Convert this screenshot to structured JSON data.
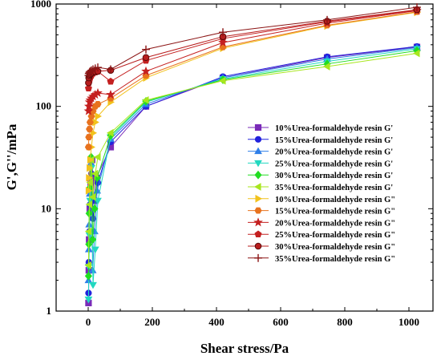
{
  "chart_data": {
    "type": "line",
    "xlabel": "Shear stress/Pa",
    "ylabel": "G',G''/mPa",
    "xlim": [
      -100,
      1075
    ],
    "ylim": [
      1,
      1000
    ],
    "yscale": "log",
    "xticks": [
      0,
      200,
      400,
      600,
      800,
      1000
    ],
    "xtick_labels": [
      "0",
      "200",
      "400",
      "600",
      "800",
      "1000"
    ],
    "yticks": [
      1,
      10,
      100,
      1000
    ],
    "ytick_labels": [
      "1",
      "10",
      "100",
      "1000"
    ],
    "legend_position": "right-center",
    "series": [
      {
        "name": "10%Urea-formaldehyde resin G'",
        "color": "#7a2bb8",
        "marker": "square",
        "points": [
          [
            1,
            1.2
          ],
          [
            2,
            2.5
          ],
          [
            3,
            5
          ],
          [
            5,
            10
          ],
          [
            8,
            18
          ],
          [
            12,
            30
          ],
          [
            18,
            12
          ],
          [
            25,
            20
          ],
          [
            70,
            40
          ],
          [
            180,
            100
          ],
          [
            420,
            190
          ],
          [
            745,
            300
          ],
          [
            1025,
            380
          ]
        ]
      },
      {
        "name": "15%Urea-formaldehyde resin G'",
        "color": "#2222dd",
        "marker": "circle",
        "points": [
          [
            1,
            1.5
          ],
          [
            2,
            3
          ],
          [
            4,
            6
          ],
          [
            6,
            11
          ],
          [
            10,
            22
          ],
          [
            15,
            8
          ],
          [
            22,
            12
          ],
          [
            30,
            18
          ],
          [
            70,
            45
          ],
          [
            180,
            100
          ],
          [
            420,
            195
          ],
          [
            745,
            305
          ],
          [
            1025,
            385
          ]
        ]
      },
      {
        "name": "20%Urea-formaldehyde resin G'",
        "color": "#2f7fe8",
        "marker": "triangle-up",
        "points": [
          [
            1,
            2
          ],
          [
            2,
            4
          ],
          [
            3,
            7
          ],
          [
            5,
            14
          ],
          [
            9,
            28
          ],
          [
            14,
            2.5
          ],
          [
            20,
            6
          ],
          [
            28,
            15
          ],
          [
            70,
            48
          ],
          [
            180,
            105
          ],
          [
            420,
            190
          ],
          [
            745,
            290
          ],
          [
            1025,
            375
          ]
        ]
      },
      {
        "name": "25%Urea-formaldehyde resin G'",
        "color": "#22d8c0",
        "marker": "triangle-down",
        "points": [
          [
            1,
            1.3
          ],
          [
            2,
            2.7
          ],
          [
            4,
            5.5
          ],
          [
            6,
            12
          ],
          [
            10,
            25
          ],
          [
            15,
            1.8
          ],
          [
            22,
            4
          ],
          [
            30,
            12
          ],
          [
            70,
            50
          ],
          [
            180,
            110
          ],
          [
            420,
            185
          ],
          [
            745,
            275
          ],
          [
            1025,
            365
          ]
        ]
      },
      {
        "name": "30%Urea-formaldehyde resin G'",
        "color": "#22dd22",
        "marker": "diamond",
        "points": [
          [
            1,
            2.2
          ],
          [
            2,
            4.5
          ],
          [
            3,
            9
          ],
          [
            5,
            16
          ],
          [
            9,
            32
          ],
          [
            14,
            5
          ],
          [
            20,
            10
          ],
          [
            28,
            20
          ],
          [
            70,
            52
          ],
          [
            180,
            112
          ],
          [
            420,
            182
          ],
          [
            745,
            260
          ],
          [
            1025,
            350
          ]
        ]
      },
      {
        "name": "35%Urea-formaldehyde resin G'",
        "color": "#a8e61e",
        "marker": "triangle-left",
        "points": [
          [
            1,
            2.8
          ],
          [
            2,
            6
          ],
          [
            4,
            11
          ],
          [
            6,
            18
          ],
          [
            10,
            30
          ],
          [
            15,
            13
          ],
          [
            22,
            22
          ],
          [
            30,
            32
          ],
          [
            70,
            55
          ],
          [
            180,
            115
          ],
          [
            420,
            178
          ],
          [
            745,
            245
          ],
          [
            1025,
            330
          ]
        ]
      },
      {
        "name": "10%Urea-formaldehyde resin G\"",
        "color": "#f2c21b",
        "marker": "triangle-right",
        "points": [
          [
            1,
            15
          ],
          [
            2,
            20
          ],
          [
            4,
            25
          ],
          [
            6,
            30
          ],
          [
            10,
            40
          ],
          [
            15,
            55
          ],
          [
            22,
            70
          ],
          [
            30,
            80
          ],
          [
            70,
            110
          ],
          [
            180,
            190
          ],
          [
            420,
            370
          ],
          [
            745,
            610
          ],
          [
            1025,
            830
          ]
        ]
      },
      {
        "name": "15%Urea-formaldehyde resin G\"",
        "color": "#e8721e",
        "marker": "hexagon",
        "points": [
          [
            1,
            40
          ],
          [
            2,
            50
          ],
          [
            4,
            60
          ],
          [
            6,
            70
          ],
          [
            10,
            80
          ],
          [
            15,
            90
          ],
          [
            22,
            100
          ],
          [
            30,
            105
          ],
          [
            70,
            120
          ],
          [
            180,
            200
          ],
          [
            420,
            380
          ],
          [
            745,
            620
          ],
          [
            1025,
            840
          ]
        ]
      },
      {
        "name": "20%Urea-formaldehyde resin G\"",
        "color": "#c42020",
        "marker": "star",
        "points": [
          [
            1,
            90
          ],
          [
            2,
            100
          ],
          [
            4,
            110
          ],
          [
            6,
            115
          ],
          [
            10,
            120
          ],
          [
            15,
            125
          ],
          [
            22,
            130
          ],
          [
            30,
            135
          ],
          [
            70,
            130
          ],
          [
            180,
            220
          ],
          [
            420,
            420
          ],
          [
            745,
            650
          ],
          [
            1025,
            860
          ]
        ]
      },
      {
        "name": "25%Urea-formaldehyde resin G\"",
        "color": "#c42020",
        "marker": "pentagon",
        "points": [
          [
            1,
            150
          ],
          [
            2,
            170
          ],
          [
            4,
            180
          ],
          [
            6,
            190
          ],
          [
            10,
            200
          ],
          [
            15,
            210
          ],
          [
            22,
            215
          ],
          [
            30,
            220
          ],
          [
            70,
            175
          ],
          [
            180,
            280
          ],
          [
            420,
            460
          ],
          [
            745,
            670
          ],
          [
            1025,
            870
          ]
        ]
      },
      {
        "name": "30%Urea-formaldehyde resin G\"",
        "color": "#b81e1e",
        "marker": "circle-half",
        "points": [
          [
            1,
            170
          ],
          [
            2,
            190
          ],
          [
            4,
            200
          ],
          [
            6,
            205
          ],
          [
            10,
            210
          ],
          [
            15,
            215
          ],
          [
            22,
            218
          ],
          [
            30,
            220
          ],
          [
            70,
            225
          ],
          [
            180,
            300
          ],
          [
            420,
            480
          ],
          [
            745,
            680
          ],
          [
            1025,
            880
          ]
        ]
      },
      {
        "name": "35%Urea-formaldehyde resin G\"",
        "color": "#8b1414",
        "marker": "plus",
        "points": [
          [
            1,
            200
          ],
          [
            2,
            210
          ],
          [
            4,
            215
          ],
          [
            6,
            220
          ],
          [
            10,
            225
          ],
          [
            15,
            230
          ],
          [
            22,
            235
          ],
          [
            30,
            240
          ],
          [
            70,
            230
          ],
          [
            180,
            360
          ],
          [
            420,
            530
          ],
          [
            745,
            700
          ],
          [
            1025,
            930
          ]
        ]
      }
    ]
  }
}
